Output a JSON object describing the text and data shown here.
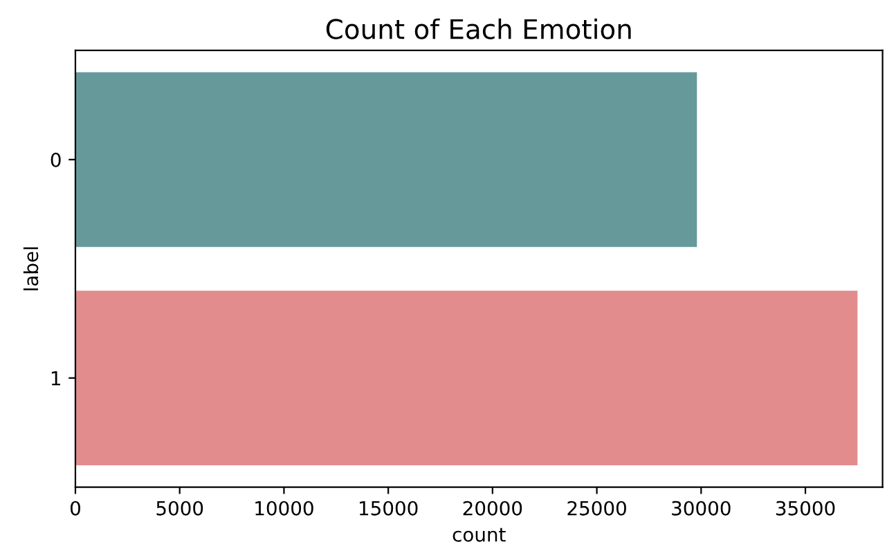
{
  "chart_data": {
    "type": "bar",
    "orientation": "horizontal",
    "title": "Count of Each Emotion",
    "xlabel": "count",
    "ylabel": "label",
    "categories": [
      "0",
      "1"
    ],
    "values": [
      29800,
      37500
    ],
    "colors": [
      "#66999a",
      "#e28c8e"
    ],
    "xlim": [
      0,
      38700
    ],
    "xticks": [
      0,
      5000,
      10000,
      15000,
      20000,
      25000,
      30000,
      35000
    ],
    "grid": false
  }
}
